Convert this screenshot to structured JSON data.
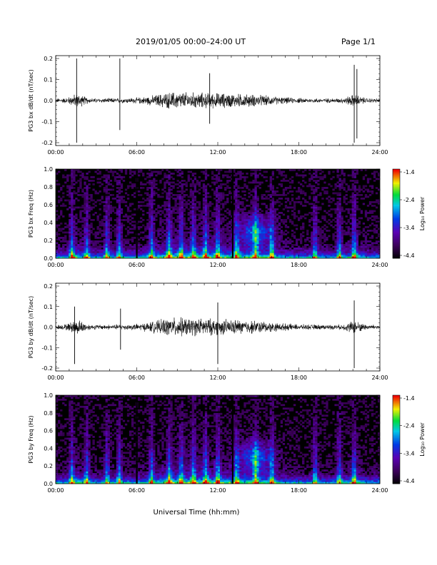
{
  "header": {
    "title": "2019/01/05  00:00–24:00 UT",
    "page": "Page 1/1"
  },
  "xaxis": {
    "ticks": [
      "00:00",
      "06:00",
      "12:00",
      "18:00",
      "24:00"
    ],
    "label": "Universal Time (hh:mm)"
  },
  "colorbar": {
    "label": "Log₁₀ Power",
    "ticks": [
      "-1.4",
      "-2.4",
      "-3.4",
      "-4.4"
    ]
  },
  "chart_data": [
    {
      "type": "line",
      "ylabel": "PG3 bx dB/dt (nT/sec)",
      "ylim": [
        -0.2,
        0.2
      ],
      "yticks": [
        "0.2",
        "0.1",
        "0.0",
        "-0.1",
        "-0.2"
      ],
      "xlim": [
        0,
        24
      ],
      "spikes": [
        {
          "t": 1.55,
          "lo": -0.2,
          "hi": 0.2
        },
        {
          "t": 4.75,
          "lo": -0.14,
          "hi": 0.2
        },
        {
          "t": 11.4,
          "lo": -0.11,
          "hi": 0.13
        },
        {
          "t": 22.1,
          "lo": -0.2,
          "hi": 0.17
        },
        {
          "t": 22.3,
          "lo": -0.18,
          "hi": 0.15
        }
      ]
    },
    {
      "type": "heatmap",
      "ylabel": "PG3 bx Freq (Hz)",
      "ylim": [
        0.0,
        1.0
      ],
      "yticks": [
        "1.0",
        "0.8",
        "0.6",
        "0.4",
        "0.2",
        "0.0"
      ],
      "xlim": [
        0,
        24
      ],
      "zlim": [
        -4.4,
        -1.4
      ]
    },
    {
      "type": "line",
      "ylabel": "PG3 by dB/dt (nT/sec)",
      "ylim": [
        -0.2,
        0.2
      ],
      "yticks": [
        "0.2",
        "0.1",
        "0.0",
        "-0.1",
        "-0.2"
      ],
      "xlim": [
        0,
        24
      ],
      "spikes": [
        {
          "t": 1.4,
          "lo": -0.18,
          "hi": 0.1
        },
        {
          "t": 4.8,
          "lo": -0.11,
          "hi": 0.09
        },
        {
          "t": 12.0,
          "lo": -0.18,
          "hi": 0.12
        },
        {
          "t": 22.1,
          "lo": -0.2,
          "hi": 0.13
        }
      ]
    },
    {
      "type": "heatmap",
      "ylabel": "PG3 by Freq (Hz)",
      "ylim": [
        0.0,
        1.0
      ],
      "yticks": [
        "1.0",
        "0.8",
        "0.6",
        "0.4",
        "0.2",
        "0.0"
      ],
      "xlim": [
        0,
        24
      ],
      "zlim": [
        -4.4,
        -1.4
      ]
    }
  ]
}
